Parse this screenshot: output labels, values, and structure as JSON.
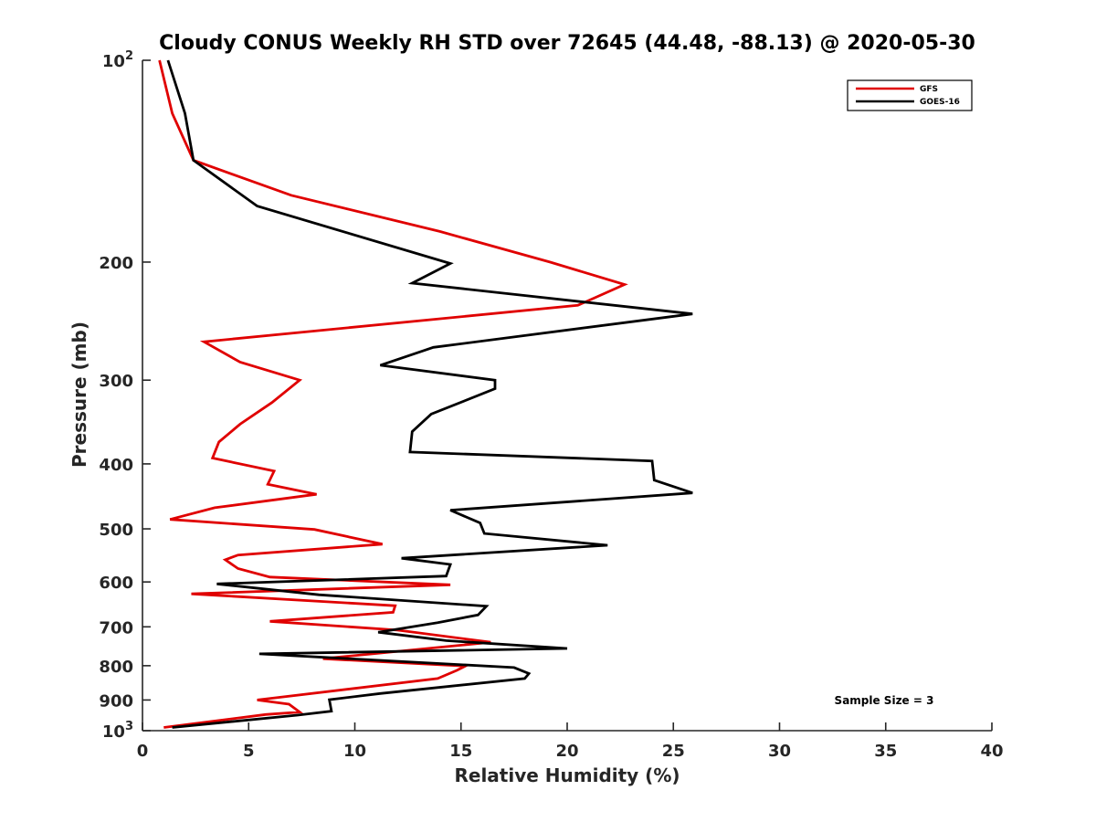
{
  "chart_data": {
    "type": "line",
    "title": "Cloudy CONUS Weekly RH STD over 72645 (44.48, -88.13) @ 2020-05-30",
    "xlabel": "Relative Humidity (%)",
    "ylabel": "Pressure (mb)",
    "xlim": [
      0,
      40
    ],
    "ylim": [
      100,
      1000
    ],
    "y_scale": "log",
    "y_reversed": true,
    "grid": false,
    "legend_position": "top-right",
    "x_ticks": [
      0,
      5,
      10,
      15,
      20,
      25,
      30,
      35,
      40
    ],
    "x_tick_labels": [
      "0",
      "5",
      "10",
      "15",
      "20",
      "25",
      "30",
      "35",
      "40"
    ],
    "y_ticks": [
      {
        "value": 100,
        "base": "10",
        "exp": "2"
      },
      {
        "value": 200,
        "label": "200"
      },
      {
        "value": 300,
        "label": "300"
      },
      {
        "value": 400,
        "label": "400"
      },
      {
        "value": 500,
        "label": "500"
      },
      {
        "value": 600,
        "label": "600"
      },
      {
        "value": 700,
        "label": "700"
      },
      {
        "value": 800,
        "label": "800"
      },
      {
        "value": 900,
        "label": "900"
      },
      {
        "value": 1000,
        "base": "10",
        "exp": "3"
      }
    ],
    "annotation": "Sample Size = 3",
    "series": [
      {
        "name": "GFS",
        "color": "#e00000",
        "points": [
          [
            0.8,
            100
          ],
          [
            1.4,
            120
          ],
          [
            2.4,
            141
          ],
          [
            7.0,
            159
          ],
          [
            14.0,
            180
          ],
          [
            19.2,
            200
          ],
          [
            22.7,
            216
          ],
          [
            20.5,
            232
          ],
          [
            2.9,
            263
          ],
          [
            4.6,
            282
          ],
          [
            7.4,
            300
          ],
          [
            6.1,
            324
          ],
          [
            4.6,
            349
          ],
          [
            3.6,
            371
          ],
          [
            3.3,
            392
          ],
          [
            6.2,
            410
          ],
          [
            5.9,
            429
          ],
          [
            8.2,
            444
          ],
          [
            3.4,
            465
          ],
          [
            1.3,
            484
          ],
          [
            8.1,
            501
          ],
          [
            11.3,
            527
          ],
          [
            4.5,
            547
          ],
          [
            3.9,
            556
          ],
          [
            4.5,
            573
          ],
          [
            6.0,
            590
          ],
          [
            14.5,
            606
          ],
          [
            2.3,
            625
          ],
          [
            11.9,
            651
          ],
          [
            11.8,
            666
          ],
          [
            6.0,
            687
          ],
          [
            12.0,
            708
          ],
          [
            16.4,
            738
          ],
          [
            8.5,
            781
          ],
          [
            15.2,
            801
          ],
          [
            14.8,
            813
          ],
          [
            13.9,
            836
          ],
          [
            5.4,
            900
          ],
          [
            6.9,
            913
          ],
          [
            7.4,
            938
          ],
          [
            5.8,
            946
          ],
          [
            1.0,
            989
          ]
        ]
      },
      {
        "name": "GOES-16",
        "color": "#000000",
        "points": [
          [
            1.2,
            100
          ],
          [
            2.0,
            120
          ],
          [
            2.4,
            141
          ],
          [
            5.4,
            165
          ],
          [
            14.5,
            201
          ],
          [
            12.7,
            215
          ],
          [
            25.9,
            239
          ],
          [
            13.7,
            268
          ],
          [
            11.2,
            285
          ],
          [
            16.6,
            300
          ],
          [
            16.6,
            309
          ],
          [
            13.6,
            337
          ],
          [
            12.7,
            358
          ],
          [
            12.6,
            384
          ],
          [
            24.0,
            396
          ],
          [
            24.1,
            423
          ],
          [
            25.9,
            442
          ],
          [
            14.5,
            469
          ],
          [
            15.9,
            490
          ],
          [
            16.1,
            508
          ],
          [
            21.9,
            529
          ],
          [
            12.2,
            553
          ],
          [
            14.5,
            565
          ],
          [
            14.3,
            588
          ],
          [
            3.5,
            604
          ],
          [
            8.3,
            627
          ],
          [
            16.2,
            652
          ],
          [
            15.8,
            672
          ],
          [
            13.9,
            690
          ],
          [
            11.1,
            713
          ],
          [
            14.3,
            734
          ],
          [
            20.0,
            754
          ],
          [
            5.5,
            768
          ],
          [
            17.5,
            805
          ],
          [
            18.2,
            822
          ],
          [
            18.0,
            836
          ],
          [
            11.2,
            880
          ],
          [
            8.8,
            899
          ],
          [
            8.9,
            935
          ],
          [
            7.3,
            948
          ],
          [
            1.4,
            989
          ]
        ]
      }
    ]
  }
}
